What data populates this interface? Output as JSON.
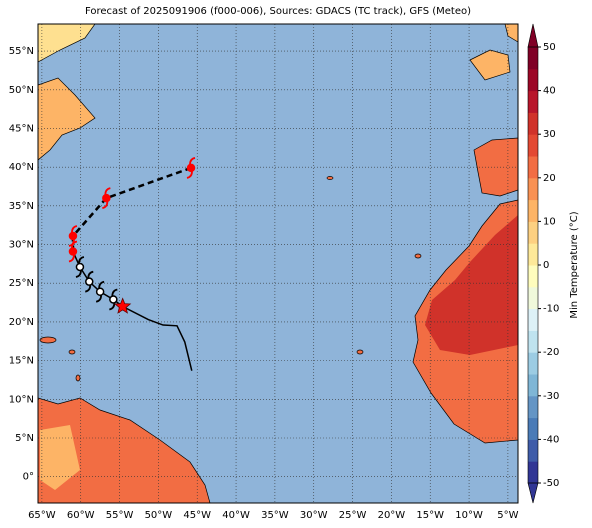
{
  "title": "Forecast of 2025091906 (f000-006), Sources: GDACS (TC track), GFS (Meteo)",
  "map": {
    "xlim": [
      -65.5,
      -3.7
    ],
    "ylim": [
      -3.4,
      58.5
    ],
    "xticks": [
      {
        "value": -65,
        "label": "65°W"
      },
      {
        "value": -60,
        "label": "60°W"
      },
      {
        "value": -55,
        "label": "55°W"
      },
      {
        "value": -50,
        "label": "50°W"
      },
      {
        "value": -45,
        "label": "45°W"
      },
      {
        "value": -40,
        "label": "40°W"
      },
      {
        "value": -35,
        "label": "35°W"
      },
      {
        "value": -30,
        "label": "30°W"
      },
      {
        "value": -25,
        "label": "25°W"
      },
      {
        "value": -20,
        "label": "20°W"
      },
      {
        "value": -15,
        "label": "15°W"
      },
      {
        "value": -10,
        "label": "10°W"
      },
      {
        "value": -5,
        "label": "5°W"
      }
    ],
    "yticks": [
      {
        "value": 0,
        "label": "0°"
      },
      {
        "value": 5,
        "label": "5°N"
      },
      {
        "value": 10,
        "label": "10°N"
      },
      {
        "value": 15,
        "label": "15°N"
      },
      {
        "value": 20,
        "label": "20°N"
      },
      {
        "value": 25,
        "label": "25°N"
      },
      {
        "value": 30,
        "label": "30°N"
      },
      {
        "value": 35,
        "label": "35°N"
      },
      {
        "value": 40,
        "label": "40°N"
      },
      {
        "value": 45,
        "label": "45°N"
      },
      {
        "value": 50,
        "label": "50°N"
      },
      {
        "value": 55,
        "label": "55°N"
      }
    ],
    "grid": true,
    "ocean_color": "#8fb4d9"
  },
  "track": {
    "past": {
      "lon": [
        -45.7,
        -46.6,
        -47.6,
        -49.4,
        -51.3,
        -54.6
      ],
      "lat": [
        13.7,
        17.4,
        19.5,
        19.6,
        20.3,
        22.0
      ]
    },
    "current": {
      "lon": -54.6,
      "lat": 22.0
    },
    "forecast_solid": {
      "lon": [
        -55.8,
        -57.5,
        -58.9,
        -60.1,
        -61.0
      ],
      "lat": [
        22.9,
        23.9,
        25.2,
        27.1,
        29.1
      ],
      "colors": [
        "black",
        "black",
        "black",
        "black",
        "red"
      ]
    },
    "forecast_dashed": {
      "lon": [
        -61.0,
        -56.7,
        -45.8
      ],
      "lat": [
        31.1,
        36.0,
        39.9
      ],
      "colors": [
        "red",
        "red",
        "red"
      ]
    }
  },
  "colorbar": {
    "label": "Min Temperature (°C)",
    "lim": [
      -50,
      50
    ],
    "ticks": [
      -50,
      -40,
      -30,
      -20,
      -10,
      0,
      10,
      20,
      30,
      40,
      50
    ],
    "colors": [
      "#313695",
      "#3f5ca9",
      "#4a7bb7",
      "#6495c5",
      "#7fb6d6",
      "#9ccce3",
      "#bfe3ef",
      "#ddf1f7",
      "#f0f9db",
      "#fffdbd",
      "#fee999",
      "#fdd081",
      "#fdb466",
      "#f99153",
      "#f26d43",
      "#e34933",
      "#d0322a",
      "#b8162b",
      "#9c0726",
      "#800026"
    ]
  }
}
